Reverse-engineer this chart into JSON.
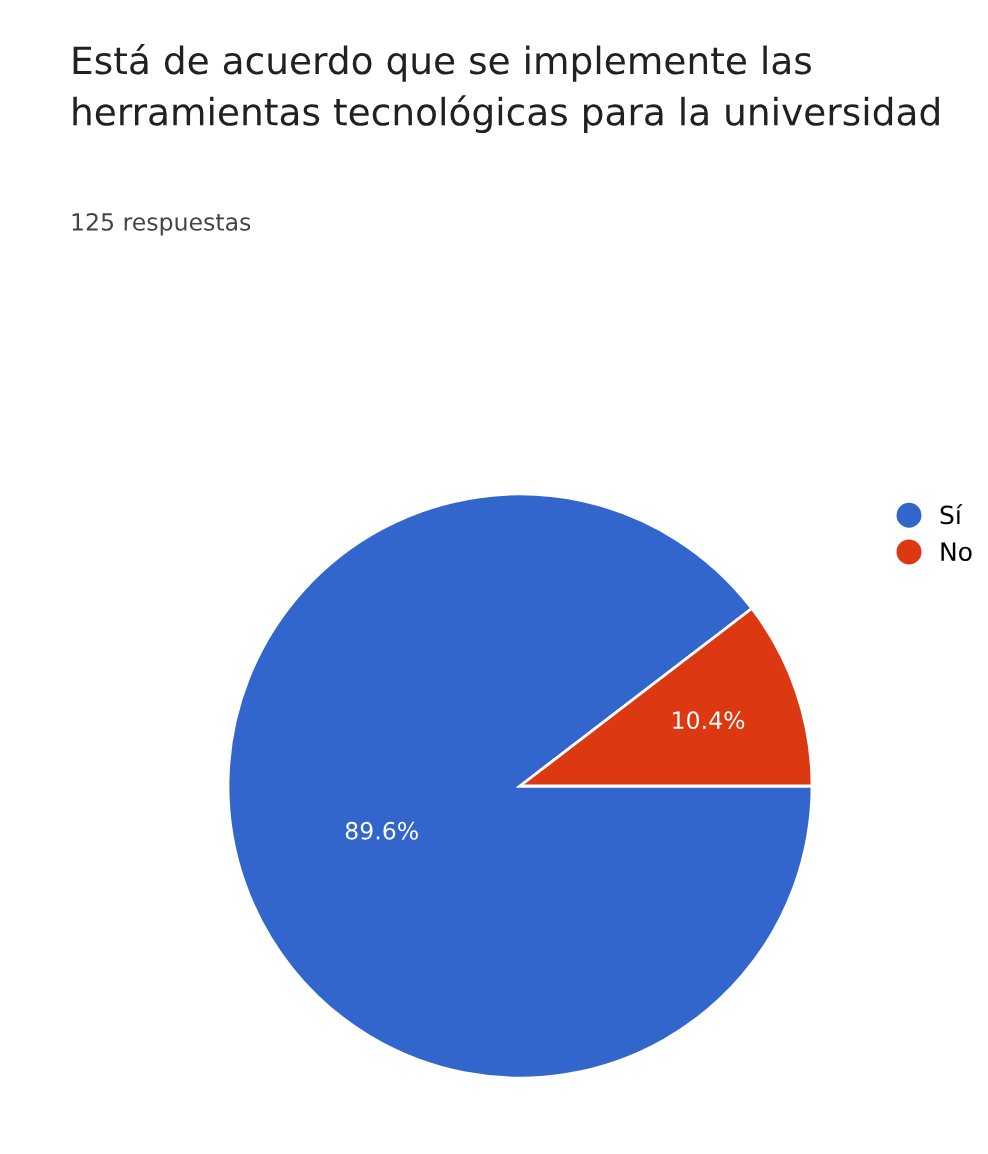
{
  "chart_data": {
    "type": "pie",
    "title": "Está de acuerdo que se implemente las herramientas tecnológicas para la universidad",
    "subtitle": "125 respuestas",
    "categories": [
      "Sí",
      "No"
    ],
    "values": [
      89.6,
      10.4
    ],
    "colors": [
      "#3366cc",
      "#dc3912"
    ],
    "value_labels": [
      "89.6%",
      "10.4%"
    ],
    "legend": "right"
  }
}
